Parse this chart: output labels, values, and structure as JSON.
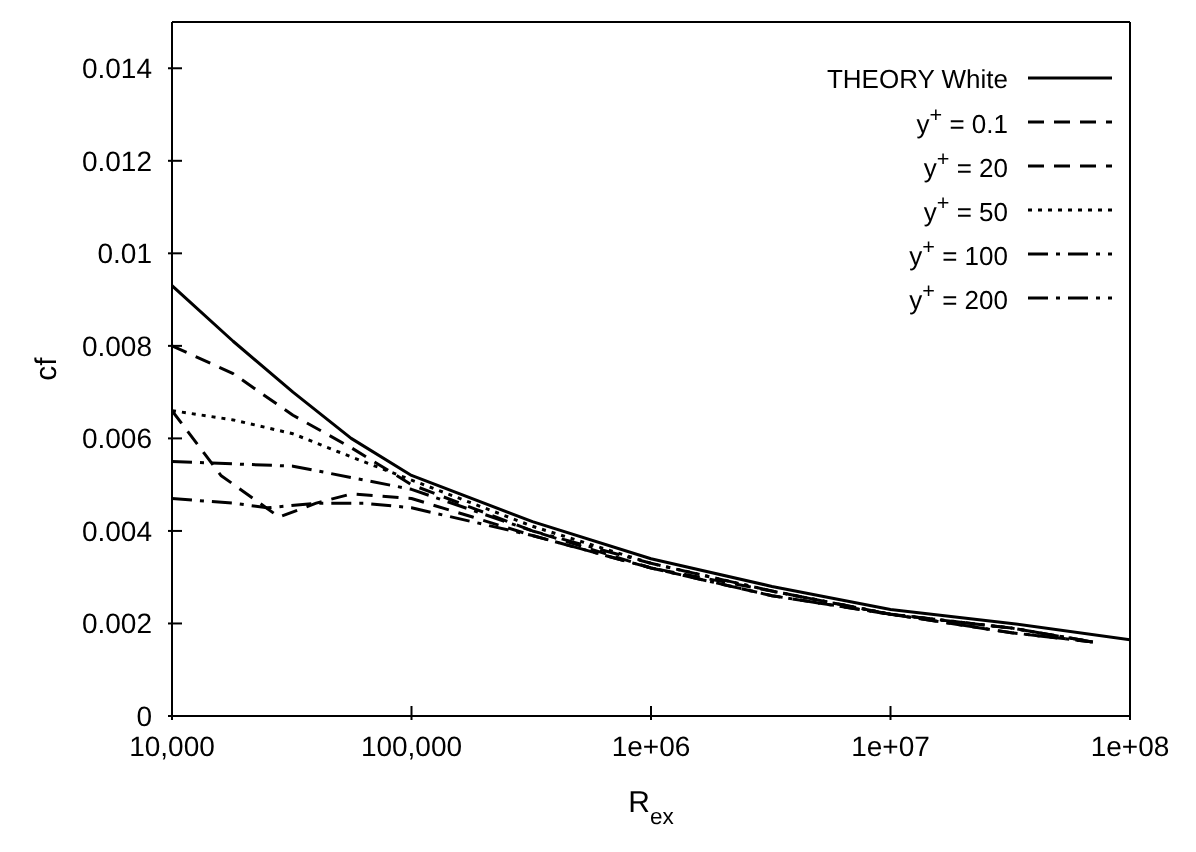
{
  "chart_data": {
    "type": "line",
    "xlabel": "R$_{ex}$",
    "ylabel": "cf",
    "log": "x",
    "xlim": [
      10000,
      100000000
    ],
    "xticks": [
      {
        "value": 10000,
        "label": "10,000"
      },
      {
        "value": 100000,
        "label": "100,000"
      },
      {
        "value": 1000000,
        "label": "1e+06"
      },
      {
        "value": 10000000,
        "label": "1e+07"
      },
      {
        "value": 100000000,
        "label": "1e+08"
      }
    ],
    "ylim": [
      0,
      0.015
    ],
    "yticks": [
      0,
      0.002,
      0.004,
      0.006,
      0.008,
      0.01,
      0.012,
      0.014
    ],
    "grid": false,
    "legend": "top right",
    "marker": "none",
    "series": [
      {
        "name": "THEORY White",
        "color": "#000000",
        "line_style": "solid",
        "x": [
          10000,
          18000,
          32000,
          56000,
          100000,
          320000,
          1000000,
          3200000,
          10000000,
          32000000,
          100000000
        ],
        "values": [
          0.0093,
          0.0081,
          0.007,
          0.006,
          0.0052,
          0.0042,
          0.0034,
          0.0028,
          0.0023,
          0.002,
          0.00165
        ]
      },
      {
        "name": "y$^{+}$ = 0.1",
        "color": "#000000",
        "line_style": "dashed",
        "x": [
          10000,
          16000,
          28000,
          40000,
          56000,
          100000,
          180000,
          320000,
          1000000,
          3200000,
          10000000,
          32000000,
          70000000
        ],
        "values": [
          0.0066,
          0.0052,
          0.0043,
          0.0046,
          0.0048,
          0.0047,
          0.0043,
          0.0039,
          0.0032,
          0.0027,
          0.0022,
          0.0019,
          0.0016
        ]
      },
      {
        "name": "y$^{+}$ = 20",
        "color": "#000000",
        "line_style": "dashed",
        "x": [
          10000,
          18000,
          32000,
          56000,
          100000,
          320000,
          1000000,
          3200000,
          10000000,
          32000000,
          70000000
        ],
        "values": [
          0.008,
          0.0074,
          0.0065,
          0.0058,
          0.005,
          0.004,
          0.0032,
          0.0026,
          0.0022,
          0.0018,
          0.0016
        ]
      },
      {
        "name": "y$^{+}$ = 50",
        "color": "#000000",
        "line_style": "dotted",
        "x": [
          10000,
          18000,
          32000,
          56000,
          100000,
          320000,
          1000000,
          3200000,
          10000000,
          32000000,
          70000000
        ],
        "values": [
          0.0066,
          0.0064,
          0.0061,
          0.0056,
          0.0051,
          0.0041,
          0.0033,
          0.0027,
          0.0022,
          0.0019,
          0.0016
        ]
      },
      {
        "name": "y$^{+}$ = 100",
        "color": "#000000",
        "line_style": "dashdot",
        "x": [
          10000,
          32000,
          100000,
          320000,
          1000000,
          3200000,
          10000000,
          32000000,
          70000000
        ],
        "values": [
          0.0055,
          0.0054,
          0.0049,
          0.004,
          0.0033,
          0.0027,
          0.0022,
          0.0019,
          0.0016
        ]
      },
      {
        "name": "y$^{+}$ = 200",
        "color": "#000000",
        "line_style": "dashdot",
        "x": [
          10000,
          18000,
          25000,
          40000,
          63000,
          100000,
          320000,
          1000000,
          3200000,
          10000000,
          32000000,
          70000000
        ],
        "values": [
          0.0047,
          0.0046,
          0.0045,
          0.0046,
          0.0046,
          0.0045,
          0.0039,
          0.0032,
          0.0026,
          0.0022,
          0.0018,
          0.0016
        ]
      }
    ]
  }
}
